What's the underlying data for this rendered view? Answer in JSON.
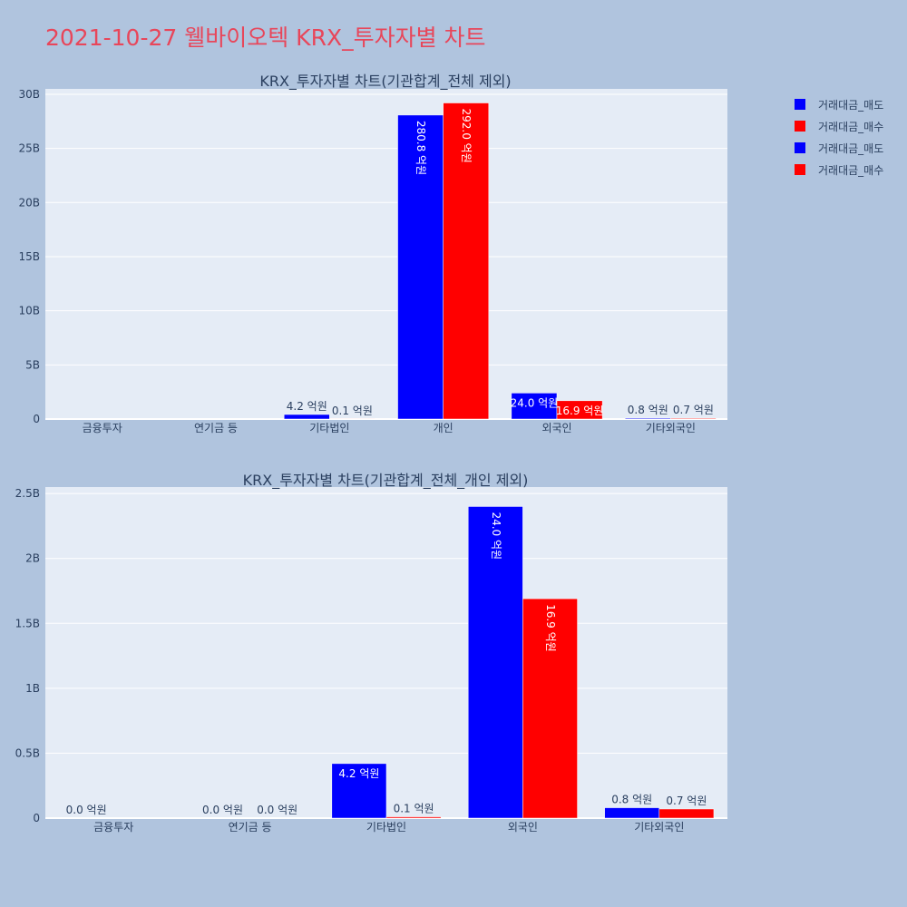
{
  "page_title": "2021-10-27 웰바이오텍 KRX_투자자별 차트",
  "colors": {
    "background": "#b0c4de",
    "plot_bg": "#e5ecf6",
    "sell": "#0000ff",
    "buy": "#ff0000",
    "title": "#e8465a"
  },
  "legend": [
    "거래대금_매도",
    "거래대금_매수",
    "거래대금_매도",
    "거래대금_매수"
  ],
  "chart_data": [
    {
      "type": "bar",
      "title": "KRX_투자자별 차트(기관합계_전체 제외)",
      "categories": [
        "금융투자",
        "연기금 등",
        "기타법인",
        "개인",
        "외국인",
        "기타외국인"
      ],
      "ylim": [
        0,
        30.5
      ],
      "yticks": [
        0,
        5,
        10,
        15,
        20,
        25,
        30
      ],
      "ytick_labels": [
        "0",
        "5B",
        "10B",
        "15B",
        "20B",
        "25B",
        "30B"
      ],
      "series": [
        {
          "name": "거래대금_매도",
          "values": [
            0,
            0,
            0.42,
            28.08,
            2.4,
            0.08
          ],
          "labels": [
            "",
            "",
            "4.2 억원",
            "280.8 억원",
            "24.0 억원",
            "0.8 억원"
          ]
        },
        {
          "name": "거래대금_매수",
          "values": [
            0,
            0,
            0.01,
            29.2,
            1.69,
            0.07
          ],
          "labels": [
            "",
            "",
            "0.1 억원",
            "292.0 억원",
            "16.9 억원",
            "0.7 억원"
          ]
        }
      ]
    },
    {
      "type": "bar",
      "title": "KRX_투자자별 차트(기관합계_전체_개인 제외)",
      "categories": [
        "금융투자",
        "연기금 등",
        "기타법인",
        "외국인",
        "기타외국인"
      ],
      "ylim": [
        0,
        2.55
      ],
      "yticks": [
        0,
        0.5,
        1,
        1.5,
        2,
        2.5
      ],
      "ytick_labels": [
        "0",
        "0.5B",
        "1B",
        "1.5B",
        "2B",
        "2.5B"
      ],
      "series": [
        {
          "name": "거래대금_매도",
          "values": [
            0.0,
            0.0,
            0.42,
            2.4,
            0.08
          ],
          "labels": [
            "0.0 억원",
            "0.0 억원",
            "4.2 억원",
            "24.0 억원",
            "0.8 억원"
          ]
        },
        {
          "name": "거래대금_매수",
          "values": [
            null,
            0.0,
            0.01,
            1.69,
            0.07
          ],
          "labels": [
            "",
            "0.0 억원",
            "0.1 억원",
            "16.9 억원",
            "0.7 억원"
          ]
        }
      ]
    }
  ]
}
